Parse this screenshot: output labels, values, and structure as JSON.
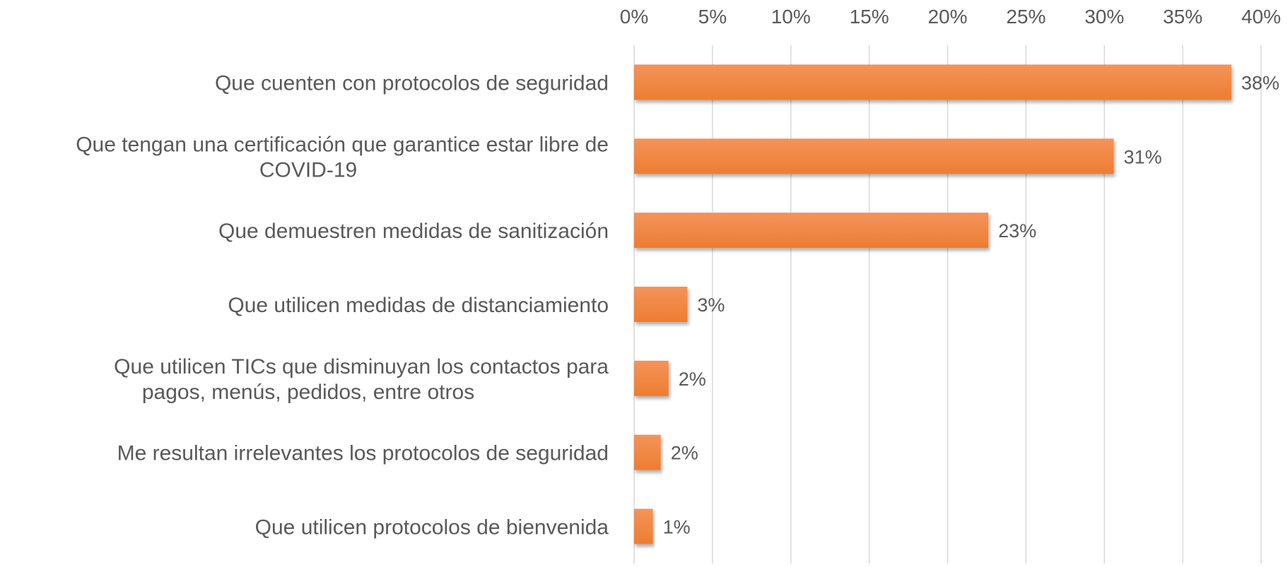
{
  "chart_data": {
    "type": "bar",
    "orientation": "horizontal",
    "title": "",
    "xlabel": "",
    "ylabel": "",
    "xlim": [
      0,
      40
    ],
    "x_ticks": [
      "0%",
      "5%",
      "10%",
      "15%",
      "20%",
      "25%",
      "30%",
      "35%",
      "40%"
    ],
    "x_tick_values": [
      0,
      5,
      10,
      15,
      20,
      25,
      30,
      35,
      40
    ],
    "grid": "vertical",
    "axis_position": "top",
    "bar_color": "#ED7D31",
    "bar_color_light": "#F4935A",
    "categories": [
      [
        "Que cuenten con protocolos de seguridad"
      ],
      [
        "Que tengan una certificación que garantice estar libre de",
        "COVID-19"
      ],
      [
        "Que demuestren medidas de sanitización"
      ],
      [
        "Que utilicen medidas de distanciamiento"
      ],
      [
        "Que utilicen TICs que disminuyan los contactos para",
        "pagos, menús, pedidos, entre otros"
      ],
      [
        "Me resultan irrelevantes los protocolos de seguridad"
      ],
      [
        "Que utilicen protocolos de bienvenida"
      ]
    ],
    "values": [
      38.1,
      30.6,
      22.6,
      3.4,
      2.2,
      1.7,
      1.2
    ],
    "data_labels": [
      "38%",
      "31%",
      "23%",
      "3%",
      "2%",
      "2%",
      "1%"
    ]
  }
}
